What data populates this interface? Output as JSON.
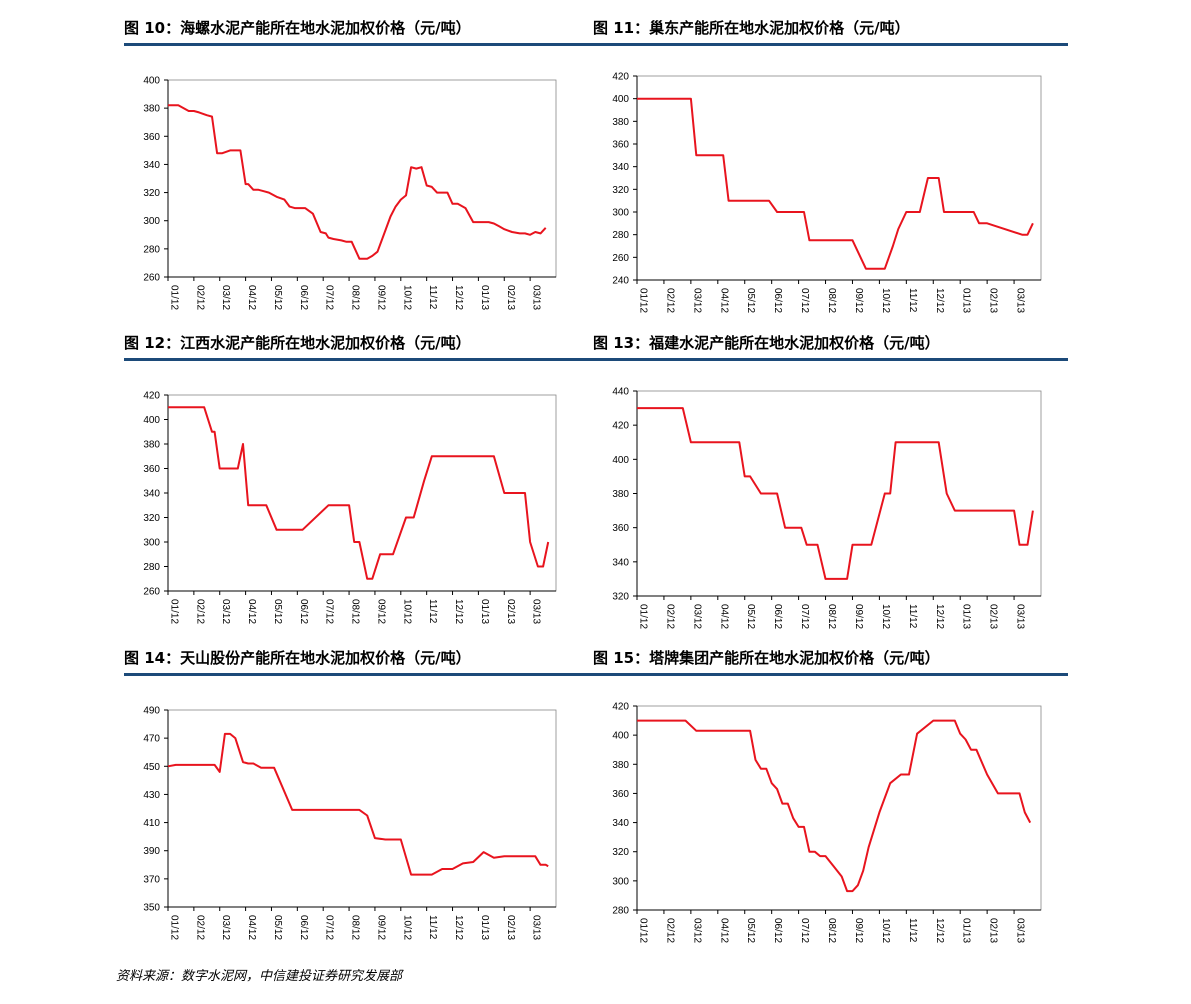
{
  "source_note": "资料来源：数字水泥网，中信建投证券研究发展部",
  "chart_data": [
    {
      "type": "line",
      "title": "图 10：海螺水泥产能所在地水泥加权价格（元/吨）",
      "categories": [
        "01/12",
        "02/12",
        "03/12",
        "04/12",
        "05/12",
        "06/12",
        "07/12",
        "08/12",
        "09/12",
        "10/12",
        "11/12",
        "12/12",
        "01/13",
        "02/13",
        "03/13"
      ],
      "ylim": [
        260,
        400
      ],
      "yticks": [
        260,
        280,
        300,
        320,
        340,
        360,
        380,
        400
      ],
      "color": "#e8141e",
      "x": [
        0,
        0.4,
        0.8,
        1.0,
        1.2,
        1.5,
        1.7,
        1.9,
        2.0,
        2.1,
        2.4,
        2.8,
        3.0,
        3.1,
        3.3,
        3.5,
        3.7,
        3.9,
        4.2,
        4.5,
        4.7,
        4.9,
        5.1,
        5.3,
        5.6,
        5.9,
        6.1,
        6.2,
        6.4,
        6.7,
        6.9,
        7.1,
        7.4,
        7.7,
        7.9,
        8.1,
        8.4,
        8.6,
        8.8,
        9.0,
        9.2,
        9.4,
        9.6,
        9.8,
        10.0,
        10.2,
        10.4,
        10.6,
        10.8,
        11.0,
        11.2,
        11.5,
        11.8,
        12.0,
        12.2,
        12.4,
        12.6,
        12.8,
        13.0,
        13.3,
        13.6,
        13.8,
        14.0,
        14.2,
        14.4,
        14.6
      ],
      "y": [
        382,
        382,
        378,
        378,
        377,
        375,
        374,
        348,
        348,
        348,
        350,
        350,
        326,
        326,
        322,
        322,
        321,
        320,
        317,
        315,
        310,
        309,
        309,
        309,
        305,
        292,
        291,
        288,
        287,
        286,
        285,
        285,
        273,
        273,
        275,
        278,
        293,
        303,
        310,
        315,
        318,
        338,
        337,
        338,
        325,
        324,
        320,
        320,
        320,
        312,
        312,
        309,
        299,
        299,
        299,
        299,
        298,
        296,
        294,
        292,
        291,
        291,
        290,
        292,
        291,
        295
      ]
    },
    {
      "type": "line",
      "title": "图 11：巢东产能所在地水泥加权价格（元/吨）",
      "categories": [
        "01/12",
        "02/12",
        "03/12",
        "04/12",
        "05/12",
        "06/12",
        "07/12",
        "08/12",
        "09/12",
        "10/12",
        "11/12",
        "12/12",
        "01/13",
        "02/13",
        "03/13"
      ],
      "ylim": [
        240,
        420
      ],
      "yticks": [
        240,
        260,
        280,
        300,
        320,
        340,
        360,
        380,
        400,
        420
      ],
      "color": "#e8141e",
      "x": [
        0,
        1.5,
        2.0,
        2.2,
        3.2,
        3.4,
        4.9,
        5.2,
        6.2,
        6.4,
        7.8,
        8.0,
        8.5,
        9.0,
        9.2,
        9.5,
        9.7,
        10.0,
        10.2,
        10.5,
        10.8,
        11.2,
        11.4,
        11.6,
        12.0,
        12.5,
        12.7,
        13.0,
        14.3,
        14.5,
        14.7
      ],
      "y": [
        400,
        400,
        400,
        350,
        350,
        310,
        310,
        300,
        300,
        275,
        275,
        275,
        250,
        250,
        250,
        270,
        285,
        300,
        300,
        300,
        330,
        330,
        300,
        300,
        300,
        300,
        290,
        290,
        280,
        280,
        290
      ]
    },
    {
      "type": "line",
      "title": "图 12：江西水泥产能所在地水泥加权价格（元/吨）",
      "categories": [
        "01/12",
        "02/12",
        "03/12",
        "04/12",
        "05/12",
        "06/12",
        "07/12",
        "08/12",
        "09/12",
        "10/12",
        "11/12",
        "12/12",
        "01/13",
        "02/13",
        "03/13"
      ],
      "ylim": [
        260,
        420
      ],
      "yticks": [
        260,
        280,
        300,
        320,
        340,
        360,
        380,
        400,
        420
      ],
      "color": "#e8141e",
      "x": [
        0,
        1.3,
        1.4,
        1.7,
        1.8,
        2.0,
        2.2,
        2.7,
        2.9,
        3.1,
        3.8,
        4.2,
        5.0,
        5.2,
        6.2,
        6.5,
        6.7,
        7.0,
        7.2,
        7.4,
        7.7,
        7.9,
        8.2,
        8.4,
        8.7,
        9.2,
        9.5,
        9.9,
        10.2,
        10.5,
        11.5,
        12.0,
        12.3,
        12.6,
        13.0,
        13.5,
        13.8,
        14.0,
        14.3,
        14.5,
        14.7
      ],
      "y": [
        410,
        410,
        410,
        390,
        390,
        360,
        360,
        360,
        380,
        330,
        330,
        310,
        310,
        310,
        330,
        330,
        330,
        330,
        300,
        300,
        270,
        270,
        290,
        290,
        290,
        320,
        320,
        350,
        370,
        370,
        370,
        370,
        370,
        370,
        340,
        340,
        340,
        300,
        280,
        280,
        300
      ]
    },
    {
      "type": "line",
      "title": "图 13：福建水泥产能所在地水泥加权价格（元/吨）",
      "categories": [
        "01/12",
        "02/12",
        "03/12",
        "04/12",
        "05/12",
        "06/12",
        "07/12",
        "08/12",
        "09/12",
        "10/12",
        "11/12",
        "12/12",
        "01/13",
        "02/13",
        "03/13"
      ],
      "ylim": [
        320,
        440
      ],
      "yticks": [
        320,
        340,
        360,
        380,
        400,
        420,
        440
      ],
      "color": "#e8141e",
      "x": [
        0,
        1.5,
        1.7,
        2.0,
        3.0,
        3.4,
        3.8,
        4.0,
        4.2,
        4.6,
        5.2,
        5.5,
        6.1,
        6.3,
        6.7,
        7.0,
        7.4,
        7.6,
        7.8,
        8.0,
        8.4,
        8.7,
        9.2,
        9.4,
        9.6,
        10.2,
        10.5,
        11.2,
        11.5,
        11.8,
        12.2,
        14.0,
        14.2,
        14.5,
        14.7
      ],
      "y": [
        430,
        430,
        430,
        410,
        410,
        410,
        410,
        390,
        390,
        380,
        380,
        360,
        360,
        350,
        350,
        330,
        330,
        330,
        330,
        350,
        350,
        350,
        380,
        380,
        410,
        410,
        410,
        410,
        380,
        370,
        370,
        370,
        350,
        350,
        370
      ]
    },
    {
      "type": "line",
      "title": "图 14：天山股份产能所在地水泥加权价格（元/吨）",
      "categories": [
        "01/12",
        "02/12",
        "03/12",
        "04/12",
        "05/12",
        "06/12",
        "07/12",
        "08/12",
        "09/12",
        "10/12",
        "11/12",
        "12/12",
        "01/13",
        "02/13",
        "03/13"
      ],
      "ylim": [
        350,
        490
      ],
      "yticks": [
        350,
        370,
        390,
        410,
        430,
        450,
        470,
        490
      ],
      "color": "#e8141e",
      "x": [
        0,
        0.3,
        0.8,
        1.3,
        1.4,
        1.6,
        1.8,
        2.0,
        2.2,
        2.4,
        2.6,
        2.9,
        3.1,
        3.3,
        3.6,
        3.9,
        4.1,
        4.8,
        5.3,
        6.0,
        6.1,
        6.3,
        6.8,
        7.4,
        7.7,
        8.0,
        8.4,
        8.6,
        9.0,
        9.4,
        9.8,
        10.2,
        10.6,
        11.0,
        11.4,
        11.8,
        12.2,
        12.6,
        13.0,
        13.4,
        13.8,
        14.2,
        14.4,
        14.6,
        14.7
      ],
      "y": [
        450,
        451,
        451,
        451,
        451,
        451,
        451,
        446,
        473,
        473,
        470,
        453,
        452,
        452,
        449,
        449,
        449,
        419,
        419,
        419,
        419,
        419,
        419,
        419,
        415,
        399,
        398,
        398,
        398,
        373,
        373,
        373,
        377,
        377,
        381,
        382,
        389,
        385,
        386,
        386,
        386,
        386,
        380,
        380,
        379
      ]
    },
    {
      "type": "line",
      "title": "图 15：塔牌集团产能所在地水泥加权价格（元/吨）",
      "categories": [
        "01/12",
        "02/12",
        "03/12",
        "04/12",
        "05/12",
        "06/12",
        "07/12",
        "08/12",
        "09/12",
        "10/12",
        "11/12",
        "12/12",
        "01/13",
        "02/13",
        "03/13"
      ],
      "ylim": [
        280,
        420
      ],
      "yticks": [
        280,
        300,
        320,
        340,
        360,
        380,
        400,
        420
      ],
      "color": "#e8141e",
      "x": [
        0,
        1.5,
        1.8,
        2.2,
        3.6,
        3.8,
        4.0,
        4.2,
        4.4,
        4.6,
        4.8,
        5.0,
        5.2,
        5.4,
        5.6,
        5.8,
        6.0,
        6.2,
        6.4,
        6.6,
        6.8,
        7.0,
        7.3,
        7.6,
        7.8,
        8.0,
        8.2,
        8.4,
        8.6,
        9.0,
        9.4,
        9.8,
        10.1,
        10.4,
        11.0,
        11.6,
        11.8,
        12.0,
        12.2,
        12.4,
        12.6,
        13.0,
        13.4,
        13.6,
        13.8,
        14.0,
        14.2,
        14.4,
        14.6
      ],
      "y": [
        410,
        410,
        410,
        403,
        403,
        403,
        403,
        403,
        383,
        377,
        377,
        367,
        363,
        353,
        353,
        343,
        337,
        337,
        320,
        320,
        317,
        317,
        310,
        303,
        293,
        293,
        297,
        307,
        323,
        347,
        367,
        373,
        373,
        401,
        410,
        410,
        410,
        401,
        397,
        390,
        390,
        373,
        360,
        360,
        360,
        360,
        360,
        347,
        340
      ]
    }
  ]
}
